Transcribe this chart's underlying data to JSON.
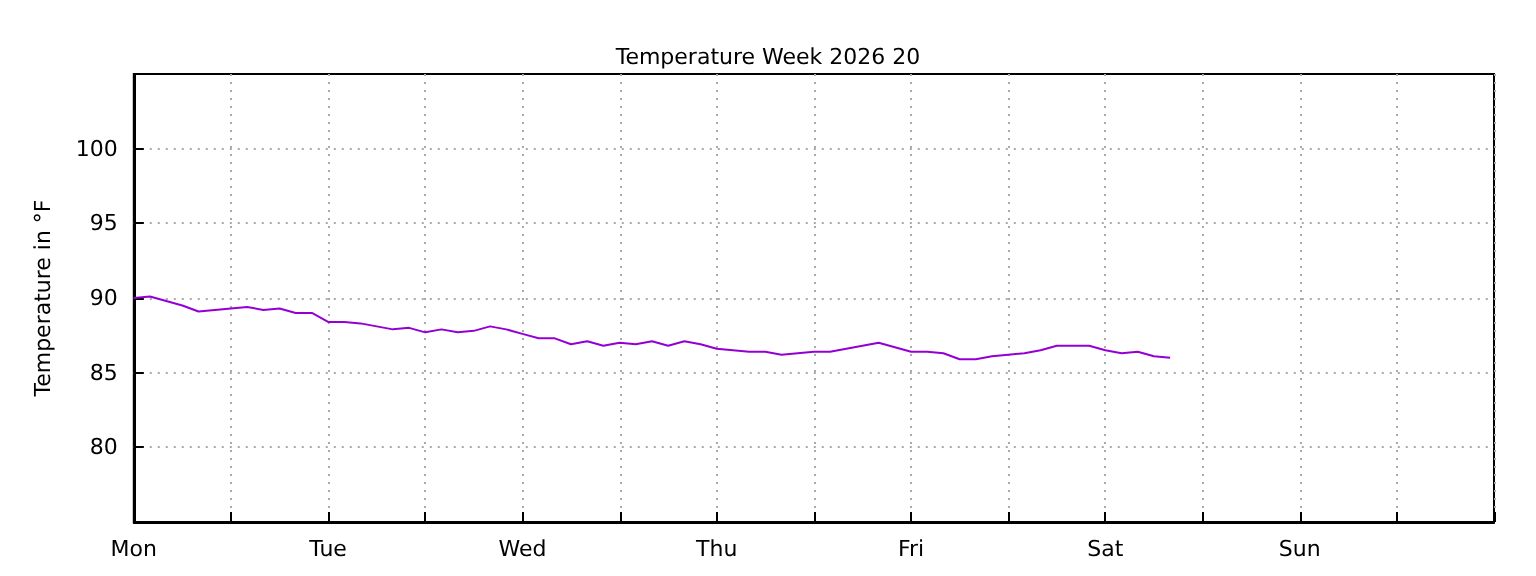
{
  "chart_data": {
    "type": "line",
    "title": "Temperature Week 2026 20",
    "ylabel": "Temperature in °F",
    "categories": [
      "Mon",
      null,
      null,
      null,
      null,
      null,
      null,
      null,
      null,
      null,
      null,
      null,
      "Tue",
      null,
      null,
      null,
      null,
      null,
      null,
      null,
      null,
      null,
      null,
      null,
      "Wed",
      null,
      null,
      null,
      null,
      null,
      null,
      null,
      null,
      null,
      null,
      null,
      "Thu",
      null,
      null,
      null,
      null,
      null,
      null,
      null,
      null,
      null,
      null,
      null,
      "Fri",
      null,
      null,
      null,
      null,
      null,
      null,
      null,
      null,
      null,
      null,
      null,
      "Sat",
      null,
      null,
      null,
      null,
      null,
      null,
      null,
      null,
      null,
      null,
      null,
      "Sun",
      null,
      null,
      null,
      null,
      null,
      null,
      null,
      null,
      null,
      null,
      null,
      null
    ],
    "series": [
      {
        "color": "#9400d3",
        "values": [
          90.0,
          90.1,
          89.8,
          89.5,
          89.1,
          89.2,
          89.3,
          89.4,
          89.2,
          89.3,
          89.0,
          89.0,
          88.4,
          88.4,
          88.3,
          88.1,
          87.9,
          88.0,
          87.7,
          87.9,
          87.7,
          87.8,
          88.1,
          87.9,
          87.6,
          87.3,
          87.3,
          86.9,
          87.1,
          86.8,
          87.0,
          86.9,
          87.1,
          86.8,
          87.1,
          86.9,
          86.6,
          86.5,
          86.4,
          86.4,
          86.2,
          86.3,
          86.4,
          86.4,
          86.6,
          86.8,
          87.0,
          86.7,
          86.4,
          86.4,
          86.3,
          85.9,
          85.9,
          86.1,
          86.2,
          86.3,
          86.5,
          86.8,
          86.8,
          86.8,
          86.5,
          86.3,
          86.4,
          86.1,
          86.0,
          null,
          null,
          null,
          null,
          null,
          null,
          null,
          null,
          null,
          null,
          null,
          null,
          null,
          null,
          null,
          null,
          null,
          null,
          null,
          null
        ]
      }
    ],
    "ylim": [
      75,
      105
    ],
    "yticks": [
      80,
      85,
      90,
      95,
      100
    ],
    "grid": true,
    "marker": "none",
    "line_style": "solid"
  }
}
